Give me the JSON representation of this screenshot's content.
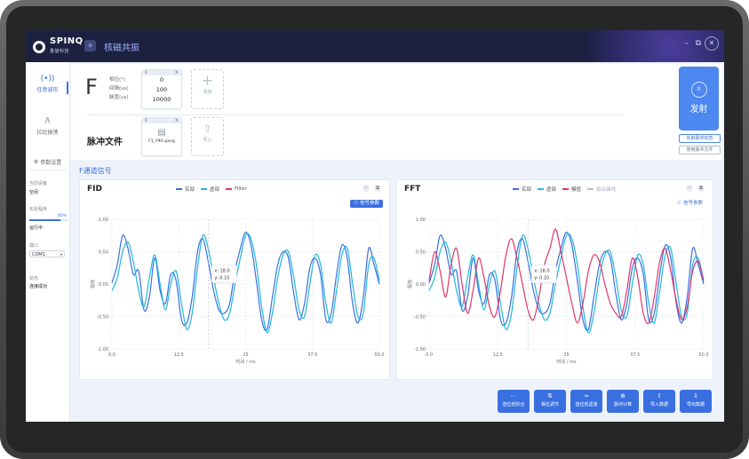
{
  "app": {
    "logo_text": "SPINQ",
    "logo_sub": "量旋科技",
    "title": "核磁共振",
    "window_controls": [
      "–",
      "⧉"
    ],
    "close_glyph": "✕"
  },
  "sidebar": {
    "items": [
      {
        "label": "任意波形",
        "icon": "(•))"
      },
      {
        "label": "拉比振荡",
        "icon": "∧"
      }
    ],
    "settings_label": "参数设置",
    "device_label": "当前设备",
    "device_value": "空闲",
    "experiment_label": "实验程序",
    "progress_percent": 80,
    "progress_text": "80%",
    "experiment_status": "运行中",
    "port_label": "端口",
    "port_value": "COM1",
    "status_label": "状态",
    "status_value": "连接成功"
  },
  "pulse_panel": {
    "channel": "F",
    "param_labels": [
      "相位(°)",
      "间隔(us)",
      "脉宽(us)"
    ],
    "tile_header_left": "0",
    "tile_values": [
      "0",
      "100",
      "10000"
    ],
    "add_label": "添加",
    "pulse_file_title": "脉冲文件",
    "file_name": "F1_Y90.sping",
    "import_label": "导入",
    "fire_label": "发射",
    "fire_icon": "II",
    "link1": "先射脉冲动态",
    "link2": "使用脉冲文件"
  },
  "section_title": "F通道信号",
  "fid": {
    "title": "FID",
    "legend": [
      "实部",
      "虚部",
      "Filter"
    ],
    "signal_param_btn": "信号参数",
    "colors": [
      "#3a6fe0",
      "#22b8d8",
      "#e0356a"
    ]
  },
  "fft": {
    "title": "FFT",
    "legend": [
      "实部",
      "虚部",
      "模值",
      "拟合曲线"
    ],
    "signal_param_btn": "信号参数",
    "colors": [
      "#3a6fe0",
      "#22b8d8",
      "#e0356a",
      "#b9c2d0"
    ]
  },
  "tooltip": {
    "x": "x: 18.0",
    "y": "y: 0.10"
  },
  "chart_data": [
    {
      "type": "line",
      "title": "FID",
      "xlabel": "时间 / ms",
      "ylabel": "幅值",
      "xlim": [
        0,
        50
      ],
      "ylim": [
        -1,
        1
      ],
      "x_ticks": [
        "0.0",
        "12.5",
        "25",
        "37.5",
        "50.0"
      ],
      "y_ticks": [
        "1.00",
        "0.50",
        "0.00",
        "-0.50",
        "-1.00"
      ],
      "series": [
        {
          "name": "实部",
          "x": [
            0,
            1,
            2,
            3,
            4,
            5,
            6,
            7,
            8,
            9,
            10,
            11,
            12,
            13,
            14,
            15,
            16,
            17,
            18,
            19,
            20,
            21,
            22,
            23,
            24,
            25,
            26,
            27,
            28,
            29,
            30,
            31,
            32,
            33,
            34,
            35,
            36,
            37,
            38,
            39,
            40,
            41,
            42,
            43,
            44,
            45,
            46,
            47,
            48,
            49,
            50
          ],
          "values": [
            0.02,
            0.3,
            0.75,
            0.55,
            0.15,
            0.2,
            -0.4,
            -0.2,
            0.4,
            -0.1,
            -0.3,
            0.15,
            0.05,
            -0.55,
            -0.6,
            -0.2,
            0.5,
            0.7,
            0.35,
            -0.1,
            -0.4,
            -0.45,
            -0.3,
            0.2,
            0.55,
            0.8,
            0.6,
            0.05,
            -0.55,
            -0.7,
            -0.2,
            0.3,
            0.5,
            0.4,
            -0.15,
            -0.55,
            -0.3,
            0.25,
            0.4,
            0.15,
            -0.55,
            -0.45,
            0.15,
            0.6,
            0.4,
            -0.3,
            -0.6,
            -0.2,
            0.55,
            0.3,
            0.0
          ]
        },
        {
          "name": "虚部",
          "x": [
            0,
            1,
            2,
            3,
            4,
            5,
            6,
            7,
            8,
            9,
            10,
            11,
            12,
            13,
            14,
            15,
            16,
            17,
            18,
            19,
            20,
            21,
            22,
            23,
            24,
            25,
            26,
            27,
            28,
            29,
            30,
            31,
            32,
            33,
            34,
            35,
            36,
            37,
            38,
            39,
            40,
            41,
            42,
            43,
            44,
            45,
            46,
            47,
            48,
            49,
            50
          ],
          "values": [
            -0.1,
            0.1,
            0.5,
            0.65,
            0.35,
            -0.1,
            -0.35,
            0.1,
            0.45,
            0.0,
            -0.4,
            0.0,
            0.2,
            -0.3,
            -0.7,
            -0.45,
            0.25,
            0.75,
            0.55,
            0.1,
            -0.3,
            -0.55,
            -0.45,
            0.0,
            0.4,
            0.75,
            0.7,
            0.3,
            -0.35,
            -0.75,
            -0.45,
            0.1,
            0.45,
            0.5,
            0.1,
            -0.4,
            -0.5,
            0.0,
            0.45,
            0.3,
            -0.3,
            -0.6,
            -0.1,
            0.45,
            0.55,
            0.0,
            -0.5,
            -0.45,
            0.3,
            0.4,
            0.05
          ]
        }
      ]
    },
    {
      "type": "line",
      "title": "FFT",
      "xlabel": "时间 / ms",
      "ylabel": "幅值",
      "xlim": [
        0,
        50
      ],
      "ylim": [
        -1,
        1
      ],
      "x_ticks": [
        "0.0",
        "12.5",
        "25",
        "37.5",
        "50.0"
      ],
      "y_ticks": [
        "1.00",
        "0.50",
        "0.00",
        "-0.50",
        "-1.00"
      ],
      "series": [
        {
          "name": "实部",
          "x": [
            0,
            1,
            2,
            3,
            4,
            5,
            6,
            7,
            8,
            9,
            10,
            11,
            12,
            13,
            14,
            15,
            16,
            17,
            18,
            19,
            20,
            21,
            22,
            23,
            24,
            25,
            26,
            27,
            28,
            29,
            30,
            31,
            32,
            33,
            34,
            35,
            36,
            37,
            38,
            39,
            40,
            41,
            42,
            43,
            44,
            45,
            46,
            47,
            48,
            49,
            50
          ],
          "values": [
            0.02,
            0.3,
            0.75,
            0.55,
            0.15,
            0.2,
            -0.4,
            -0.2,
            0.4,
            -0.1,
            -0.3,
            0.15,
            0.05,
            -0.55,
            -0.6,
            -0.2,
            0.5,
            0.7,
            0.35,
            -0.1,
            -0.4,
            -0.45,
            -0.3,
            0.2,
            0.55,
            0.8,
            0.6,
            0.05,
            -0.55,
            -0.7,
            -0.2,
            0.3,
            0.5,
            0.4,
            -0.15,
            -0.55,
            -0.3,
            0.25,
            0.4,
            0.15,
            -0.55,
            -0.45,
            0.15,
            0.6,
            0.4,
            -0.3,
            -0.6,
            -0.2,
            0.55,
            0.3,
            0.0
          ]
        },
        {
          "name": "虚部",
          "x": [
            0,
            1,
            2,
            3,
            4,
            5,
            6,
            7,
            8,
            9,
            10,
            11,
            12,
            13,
            14,
            15,
            16,
            17,
            18,
            19,
            20,
            21,
            22,
            23,
            24,
            25,
            26,
            27,
            28,
            29,
            30,
            31,
            32,
            33,
            34,
            35,
            36,
            37,
            38,
            39,
            40,
            41,
            42,
            43,
            44,
            45,
            46,
            47,
            48,
            49,
            50
          ],
          "values": [
            -0.1,
            0.1,
            0.5,
            0.65,
            0.35,
            -0.1,
            -0.35,
            0.1,
            0.45,
            0.0,
            -0.4,
            0.0,
            0.2,
            -0.3,
            -0.7,
            -0.45,
            0.25,
            0.75,
            0.55,
            0.1,
            -0.3,
            -0.55,
            -0.45,
            0.0,
            0.4,
            0.75,
            0.7,
            0.3,
            -0.35,
            -0.75,
            -0.45,
            0.1,
            0.45,
            0.5,
            0.1,
            -0.4,
            -0.5,
            0.0,
            0.45,
            0.3,
            -0.3,
            -0.6,
            -0.1,
            0.45,
            0.55,
            0.0,
            -0.5,
            -0.45,
            0.3,
            0.4,
            0.05
          ]
        },
        {
          "name": "模值",
          "x": [
            0,
            1,
            2,
            3,
            4,
            5,
            6,
            7,
            8,
            9,
            10,
            11,
            12,
            13,
            14,
            15,
            16,
            17,
            18,
            19,
            20,
            21,
            22,
            23,
            24,
            25,
            26,
            27,
            28,
            29,
            30,
            31,
            32,
            33,
            34,
            35,
            36,
            37,
            38,
            39,
            40,
            41,
            42,
            43,
            44,
            45,
            46,
            47,
            48,
            49,
            50
          ],
          "values": [
            0.05,
            0.5,
            0.2,
            -0.2,
            0.3,
            0.55,
            0.0,
            -0.45,
            -0.1,
            0.4,
            0.1,
            -0.35,
            -0.5,
            -0.1,
            0.45,
            0.7,
            0.4,
            0.0,
            -0.4,
            -0.55,
            -0.2,
            0.3,
            0.55,
            0.85,
            0.5,
            0.1,
            -0.3,
            -0.6,
            -0.3,
            0.2,
            0.45,
            0.35,
            0.0,
            -0.3,
            -0.45,
            -0.5,
            -0.1,
            0.4,
            0.1,
            -0.45,
            -0.6,
            -0.2,
            0.35,
            0.55,
            0.2,
            -0.25,
            -0.55,
            -0.35,
            0.2,
            0.35,
            0.05
          ]
        }
      ]
    }
  ],
  "actions": [
    {
      "label": "选位低阶合",
      "icon": "⋯"
    },
    {
      "label": "相位调节",
      "icon": "⇅"
    },
    {
      "label": "选位低滤波",
      "icon": "≈"
    },
    {
      "label": "脉冲计算",
      "icon": "⊕"
    },
    {
      "label": "导入数据",
      "icon": "⇧"
    },
    {
      "label": "导出数据",
      "icon": "⇩"
    }
  ]
}
